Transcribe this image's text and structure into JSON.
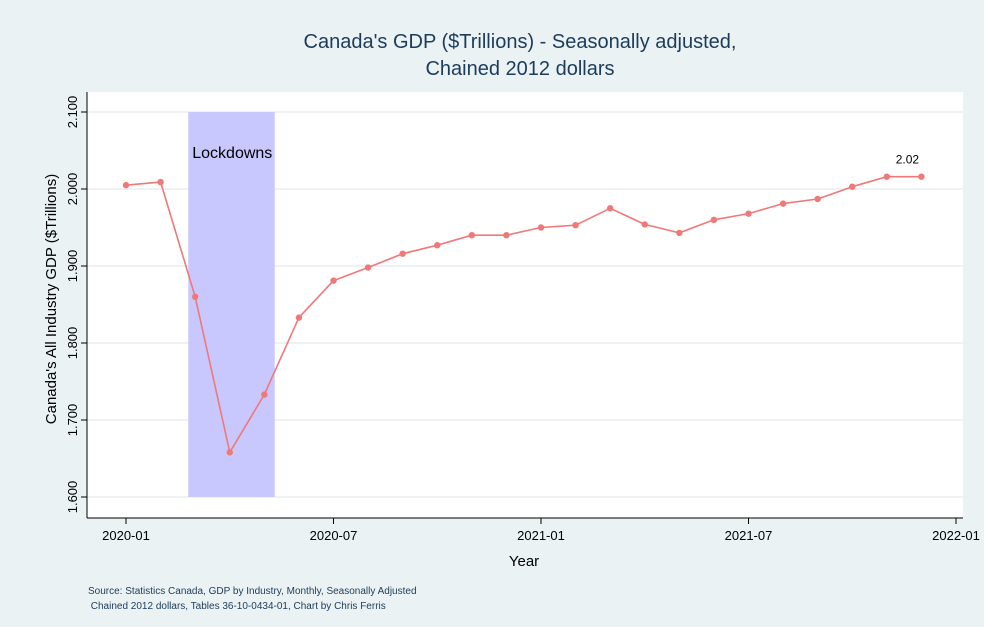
{
  "chart_data": {
    "type": "line",
    "title_lines": [
      "Canada's GDP ($Trillions) - Seasonally adjusted,",
      "Chained 2012 dollars"
    ],
    "xlabel": "Year",
    "ylabel": "Canada's All Industry GDP ($Trillions)",
    "x_ticks": [
      "2020-01",
      "2020-07",
      "2021-01",
      "2021-07",
      "2022-01"
    ],
    "y_ticks": [
      "1.600",
      "1.700",
      "1.800",
      "1.900",
      "2.000",
      "2.100"
    ],
    "ylim": [
      1.6,
      2.1
    ],
    "xlim": [
      "2020-01",
      "2022-01"
    ],
    "grid": true,
    "series": [
      {
        "color": "#f07878",
        "points": [
          {
            "x": "2020-01",
            "y": 2.005
          },
          {
            "x": "2020-02",
            "y": 2.009
          },
          {
            "x": "2020-03",
            "y": 1.86
          },
          {
            "x": "2020-04",
            "y": 1.658
          },
          {
            "x": "2020-05",
            "y": 1.733
          },
          {
            "x": "2020-06",
            "y": 1.833
          },
          {
            "x": "2020-07",
            "y": 1.881
          },
          {
            "x": "2020-08",
            "y": 1.898
          },
          {
            "x": "2020-09",
            "y": 1.916
          },
          {
            "x": "2020-10",
            "y": 1.927
          },
          {
            "x": "2020-11",
            "y": 1.94
          },
          {
            "x": "2020-12",
            "y": 1.94
          },
          {
            "x": "2021-01",
            "y": 1.95
          },
          {
            "x": "2021-02",
            "y": 1.953
          },
          {
            "x": "2021-03",
            "y": 1.975
          },
          {
            "x": "2021-04",
            "y": 1.954
          },
          {
            "x": "2021-05",
            "y": 1.943
          },
          {
            "x": "2021-06",
            "y": 1.96
          },
          {
            "x": "2021-07",
            "y": 1.968
          },
          {
            "x": "2021-08",
            "y": 1.981
          },
          {
            "x": "2021-09",
            "y": 1.987
          },
          {
            "x": "2021-10",
            "y": 2.003
          },
          {
            "x": "2021-11",
            "y": 2.016
          },
          {
            "x": "2021-12",
            "y": 2.016
          }
        ]
      }
    ],
    "shaded_region": {
      "label": "Lockdowns",
      "x_start": "2020-02-25",
      "x_end": "2020-05-10",
      "color": "#c8c8ff"
    },
    "point_annotation": {
      "x": "2021-12",
      "y": 2.016,
      "label": "2.02"
    },
    "source_lines": [
      "Source: Statistics Canada, GDP by Industry, Monthly, Seasonally Adjusted",
      " Chained 2012 dollars, Tables 36-10-0434-01, Chart by Chris Ferris"
    ]
  }
}
